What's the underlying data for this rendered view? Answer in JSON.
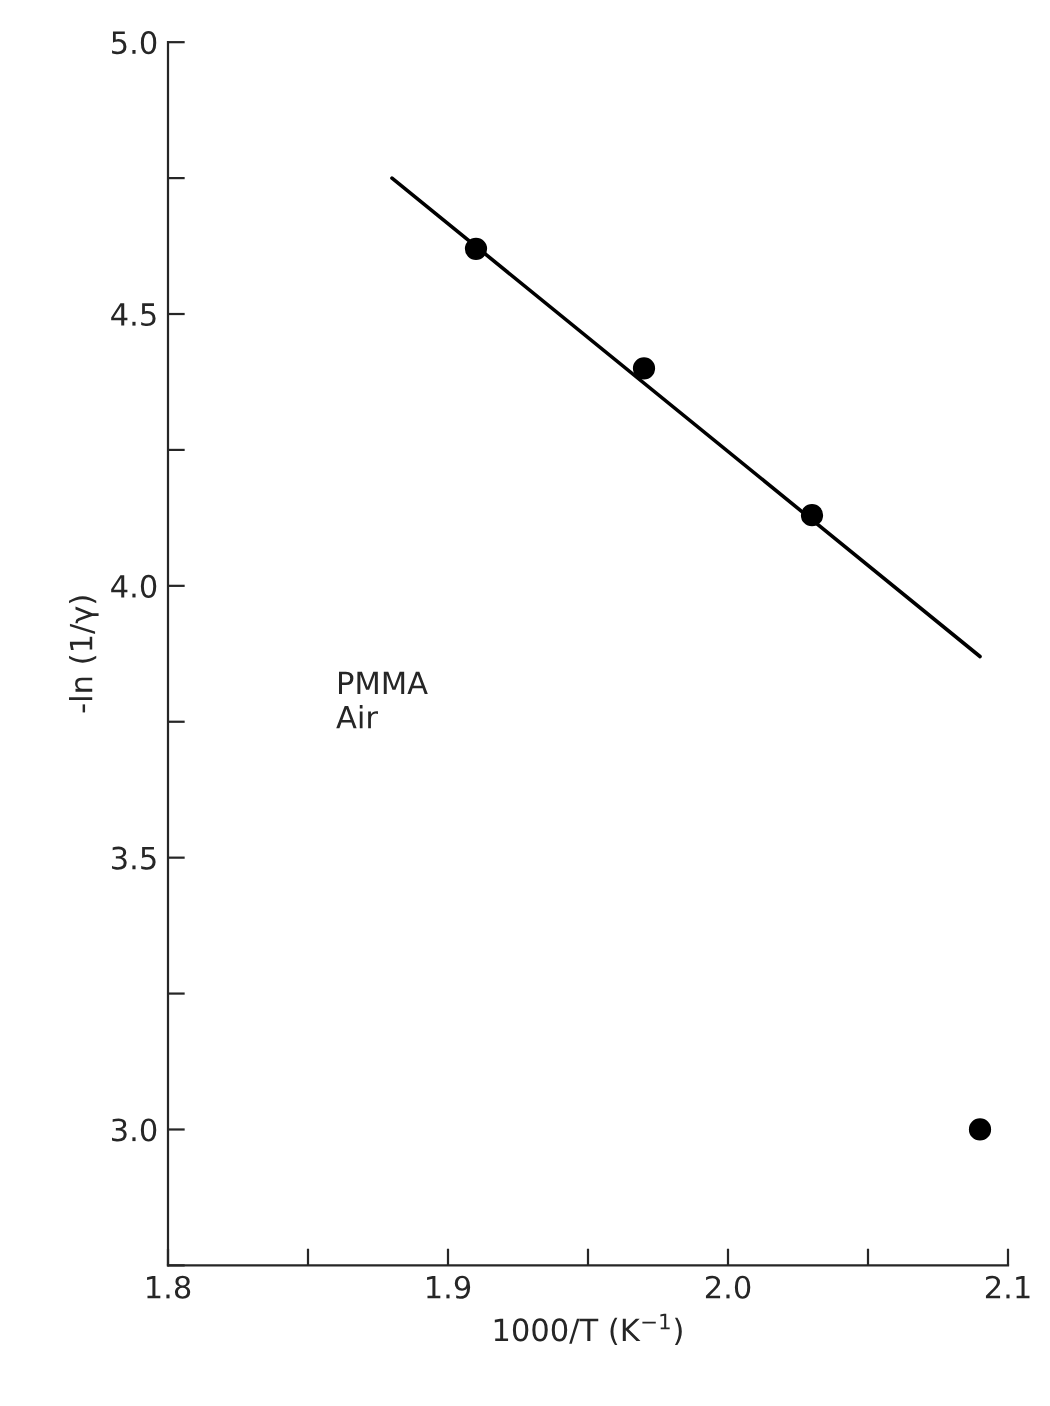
{
  "chart_data": {
    "type": "scatter",
    "xlabel": "1000/T (K$^{−1}$)",
    "ylabel": "-ln (1/γ)",
    "x": [
      1.91,
      1.97,
      2.03,
      2.09
    ],
    "series": [
      {
        "color": "#000000",
        "values": [
          4.62,
          4.4,
          4.13,
          3.0
        ],
        "marker": "circle"
      },
      {
        "type": "line",
        "color": "#000000",
        "x": [
          1.88,
          2.09
        ],
        "values": [
          4.75,
          3.87
        ],
        "marker": "none",
        "line_style": "solid"
      }
    ],
    "annotations": [
      "PMMA\nAir"
    ],
    "xlim": [
      1.8,
      2.1
    ],
    "ylim": [
      2.75,
      5.0
    ],
    "xticks": [
      1.8,
      {
        "value": 1.85,
        "label": null
      },
      1.9,
      {
        "value": 1.95,
        "label": null
      },
      {
        "value": 2.0,
        "label": "2.0"
      },
      {
        "value": 2.05,
        "label": null
      },
      2.1
    ],
    "yticks": [
      {
        "value": 2.75,
        "label": null
      },
      {
        "value": 3.0,
        "label": "3.0"
      },
      {
        "value": 3.25,
        "label": null
      },
      3.5,
      {
        "value": 3.75,
        "label": null
      },
      {
        "value": 4.0,
        "label": "4.0"
      },
      {
        "value": 4.25,
        "label": null
      },
      4.5,
      {
        "value": 4.75,
        "label": null
      },
      {
        "value": 5.0,
        "label": "5.0"
      }
    ],
    "grid": false,
    "legend": false
  }
}
